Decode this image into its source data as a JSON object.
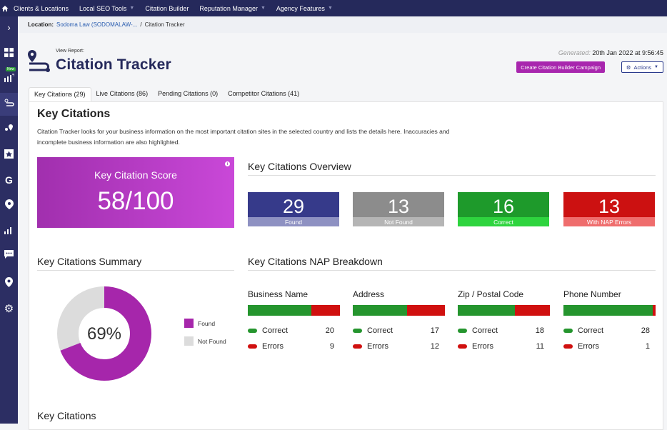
{
  "topnav": {
    "items": [
      {
        "label": "Clients & Locations",
        "caret": false
      },
      {
        "label": "Local SEO Tools",
        "caret": true
      },
      {
        "label": "Citation Builder",
        "caret": false
      },
      {
        "label": "Reputation Manager",
        "caret": true
      },
      {
        "label": "Agency Features",
        "caret": true
      }
    ]
  },
  "sidebar": {
    "new_badge": "New",
    "icons": [
      "expand-icon",
      "dashboard-icon",
      "rank-tracker-icon",
      "citation-tracker-icon",
      "local-search-grid-icon",
      "reviews-icon",
      "google-icon",
      "seo-icon",
      "analytics-icon",
      "chat-icon",
      "location-icon",
      "settings-icon"
    ]
  },
  "breadcrumb": {
    "label": "Location:",
    "location": "Sodoma Law (SODOMALAW-...",
    "separator": "/",
    "current": "Citation Tracker"
  },
  "header": {
    "view_report": "View Report:",
    "title": "Citation Tracker",
    "generated_label": "Generated:",
    "generated_value": "20th Jan 2022 at 9:56:45",
    "campaign_button": "Create Citation Builder Campaign",
    "actions_button": "Actions"
  },
  "tabs": [
    {
      "label": "Key Citations (29)",
      "active": true
    },
    {
      "label": "Live Citations (86)",
      "active": false
    },
    {
      "label": "Pending Citations (0)",
      "active": false
    },
    {
      "label": "Competitor Citations (41)",
      "active": false
    }
  ],
  "main": {
    "heading": "Key Citations",
    "description": "Citation Tracker looks for your business information on the most important citation sites in the selected country and lists the details here. Inaccuracies and incomplete business information are also highlighted.",
    "score": {
      "label": "Key Citation Score",
      "value": "58/100"
    },
    "overview": {
      "title": "Key Citations Overview",
      "stats": [
        {
          "num": "29",
          "label": "Found",
          "bg": "#363a8a",
          "sub_bg": "#8e91c2"
        },
        {
          "num": "13",
          "label": "Not Found",
          "bg": "#8c8c8c",
          "sub_bg": "#b5b5b5"
        },
        {
          "num": "16",
          "label": "Correct",
          "bg": "#1e9a2b",
          "sub_bg": "#2ed43e"
        },
        {
          "num": "13",
          "label": "With NAP Errors",
          "bg": "#cc1111",
          "sub_bg": "#ef6d6d"
        }
      ]
    },
    "summary": {
      "title": "Key Citations Summary",
      "percent_text": "69%",
      "found_fraction": 0.69,
      "found_color": "#a626ab",
      "not_found_color": "#dcdcdc",
      "legend": [
        "Found",
        "Not Found"
      ]
    },
    "nap": {
      "title": "Key Citations NAP Breakdown",
      "correct_label": "Correct",
      "errors_label": "Errors",
      "correct_color": "#25952e",
      "errors_color": "#d0100f",
      "items": [
        {
          "category": "Business Name",
          "correct": "20",
          "errors": "9"
        },
        {
          "category": "Address",
          "correct": "17",
          "errors": "12"
        },
        {
          "category": "Zip / Postal Code",
          "correct": "18",
          "errors": "11"
        },
        {
          "category": "Phone Number",
          "correct": "28",
          "errors": "1"
        }
      ]
    },
    "bottom_title": "Key Citations"
  }
}
